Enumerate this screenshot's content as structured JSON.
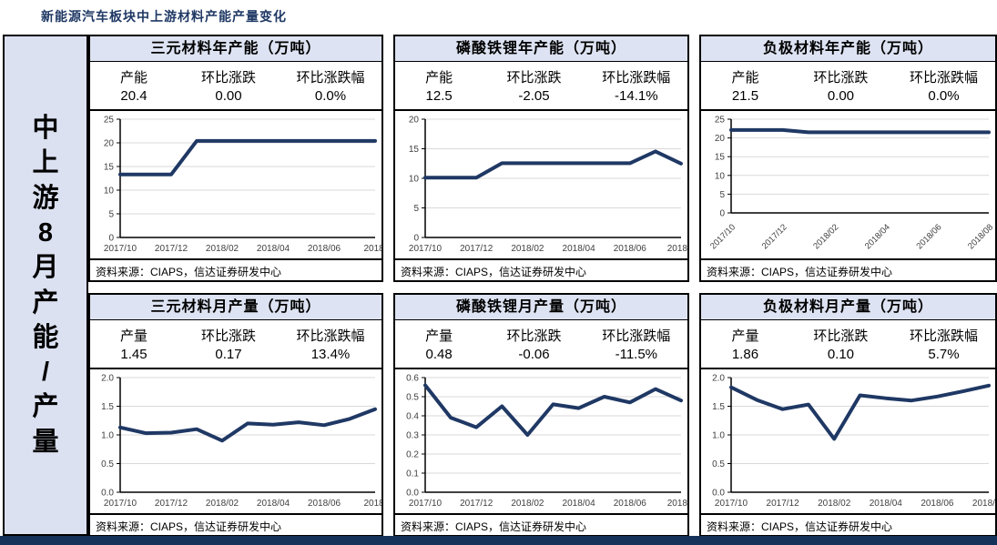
{
  "page": {
    "title": "新能源汽车板块中上游材料产能产量变化"
  },
  "sidebar": {
    "label": "中上游8月产能/产量"
  },
  "source_text": "资料来源：CIAPS，信达证券研发中心",
  "colors": {
    "accent_navy": "#1f3864",
    "header_bg": "#dde3f2",
    "sidebar_bg": "#dbe1f1",
    "gridline": "#d9d9d9",
    "bottom_bar": "#14325a"
  },
  "panels": [
    {
      "title": "三元材料年产能（万吨）",
      "stats": {
        "headers": [
          "产能",
          "环比涨跌",
          "环比涨跌幅"
        ],
        "values": [
          "20.4",
          "0.00",
          "0.0%"
        ]
      }
    },
    {
      "title": "磷酸铁锂年产能（万吨）",
      "stats": {
        "headers": [
          "产能",
          "环比涨跌",
          "环比涨跌幅"
        ],
        "values": [
          "12.5",
          "-2.05",
          "-14.1%"
        ]
      }
    },
    {
      "title": "负极材料年产能（万吨）",
      "stats": {
        "headers": [
          "产能",
          "环比涨跌",
          "环比涨跌幅"
        ],
        "values": [
          "21.5",
          "0.00",
          "0.0%"
        ]
      }
    },
    {
      "title": "三元材料月产量（万吨）",
      "stats": {
        "headers": [
          "产量",
          "环比涨跌",
          "环比涨跌幅"
        ],
        "values": [
          "1.45",
          "0.17",
          "13.4%"
        ]
      }
    },
    {
      "title": "磷酸铁锂月产量（万吨）",
      "stats": {
        "headers": [
          "产量",
          "环比涨跌",
          "环比涨跌幅"
        ],
        "values": [
          "0.48",
          "-0.06",
          "-11.5%"
        ]
      }
    },
    {
      "title": "负极材料月产量（万吨）",
      "stats": {
        "headers": [
          "产量",
          "环比涨跌",
          "环比涨跌幅"
        ],
        "values": [
          "1.86",
          "0.10",
          "5.7%"
        ]
      }
    }
  ],
  "chart_data": [
    {
      "type": "line",
      "title": "三元材料年产能（万吨）",
      "x": [
        "2017/10",
        "2017/11",
        "2017/12",
        "2018/01",
        "2018/02",
        "2018/03",
        "2018/04",
        "2018/05",
        "2018/06",
        "2018/07",
        "2018/08"
      ],
      "values": [
        13.3,
        13.3,
        13.3,
        20.4,
        20.4,
        20.4,
        20.4,
        20.4,
        20.4,
        20.4,
        20.4
      ],
      "ylim": [
        0,
        25
      ],
      "ytick_labels": [
        "0",
        "5",
        "10",
        "15",
        "20",
        "25"
      ],
      "xtick_indices": [
        0,
        2,
        4,
        6,
        8,
        10
      ],
      "xtick_labels": [
        "2017/10",
        "2017/12",
        "2018/02",
        "2018/04",
        "2018/06",
        "2018/"
      ],
      "rotated_xticks": false,
      "grid": true,
      "legend": "none",
      "line_color": "#1f3864",
      "xlabel": "",
      "ylabel": ""
    },
    {
      "type": "line",
      "title": "磷酸铁锂年产能（万吨）",
      "x": [
        "2017/10",
        "2017/11",
        "2017/12",
        "2018/01",
        "2018/02",
        "2018/03",
        "2018/04",
        "2018/05",
        "2018/06",
        "2018/07",
        "2018/08"
      ],
      "values": [
        10.1,
        10.1,
        10.1,
        12.55,
        12.55,
        12.55,
        12.55,
        12.55,
        12.55,
        14.55,
        12.5
      ],
      "ylim": [
        0,
        20
      ],
      "ytick_labels": [
        "0",
        "5",
        "10",
        "15",
        "20"
      ],
      "xtick_indices": [
        0,
        2,
        4,
        6,
        8,
        10
      ],
      "xtick_labels": [
        "2017/10",
        "2017/12",
        "2018/02",
        "2018/04",
        "2018/06",
        "2018/0"
      ],
      "rotated_xticks": false,
      "grid": true,
      "legend": "none",
      "line_color": "#1f3864",
      "xlabel": "",
      "ylabel": ""
    },
    {
      "type": "line",
      "title": "负极材料年产能（万吨）",
      "x": [
        "2017/10",
        "2017/11",
        "2017/12",
        "2018/01",
        "2018/02",
        "2018/03",
        "2018/04",
        "2018/05",
        "2018/06",
        "2018/07",
        "2018/08"
      ],
      "values": [
        22.1,
        22.1,
        22.1,
        21.5,
        21.5,
        21.5,
        21.5,
        21.5,
        21.5,
        21.5,
        21.5
      ],
      "ylim": [
        0,
        25
      ],
      "ytick_labels": [
        "0",
        "5",
        "10",
        "15",
        "20",
        "25"
      ],
      "xtick_indices": [
        0,
        2,
        4,
        6,
        8,
        10
      ],
      "xtick_labels": [
        "2017/10",
        "2017/12",
        "2018/02",
        "2018/04",
        "2018/06",
        "2018/08"
      ],
      "rotated_xticks": true,
      "grid": true,
      "legend": "none",
      "line_color": "#1f3864",
      "xlabel": "",
      "ylabel": ""
    },
    {
      "type": "line",
      "title": "三元材料月产量（万吨）",
      "x": [
        "2017/10",
        "2017/11",
        "2017/12",
        "2018/01",
        "2018/02",
        "2018/03",
        "2018/04",
        "2018/05",
        "2018/06",
        "2018/07",
        "2018/08"
      ],
      "values": [
        1.13,
        1.03,
        1.04,
        1.1,
        0.9,
        1.2,
        1.18,
        1.22,
        1.17,
        1.28,
        1.45
      ],
      "ylim": [
        0.0,
        2.0
      ],
      "ytick_labels": [
        "0.0",
        "0.5",
        "1.0",
        "1.5",
        "2.0"
      ],
      "xtick_indices": [
        0,
        2,
        4,
        6,
        8,
        10
      ],
      "xtick_labels": [
        "2017/10",
        "2017/12",
        "2018/02",
        "2018/04",
        "2018/06",
        "2018/"
      ],
      "rotated_xticks": false,
      "grid": true,
      "legend": "none",
      "line_color": "#1f3864",
      "xlabel": "",
      "ylabel": ""
    },
    {
      "type": "line",
      "title": "磷酸铁锂月产量（万吨）",
      "x": [
        "2017/10",
        "2017/11",
        "2017/12",
        "2018/01",
        "2018/02",
        "2018/03",
        "2018/04",
        "2018/05",
        "2018/06",
        "2018/07",
        "2018/08"
      ],
      "values": [
        0.56,
        0.39,
        0.34,
        0.45,
        0.3,
        0.46,
        0.44,
        0.5,
        0.47,
        0.54,
        0.48
      ],
      "ylim": [
        0.0,
        0.6
      ],
      "ytick_labels": [
        "0.0",
        "0.1",
        "0.2",
        "0.3",
        "0.4",
        "0.5",
        "0.6"
      ],
      "xtick_indices": [
        0,
        2,
        4,
        6,
        8,
        10
      ],
      "xtick_labels": [
        "2017/10",
        "2017/12",
        "2018/02",
        "2018/04",
        "2018/06",
        "2018/0"
      ],
      "rotated_xticks": false,
      "grid": true,
      "legend": "none",
      "line_color": "#1f3864",
      "xlabel": "",
      "ylabel": ""
    },
    {
      "type": "line",
      "title": "负极材料月产量（万吨）",
      "x": [
        "2017/10",
        "2017/11",
        "2017/12",
        "2018/01",
        "2018/02",
        "2018/03",
        "2018/04",
        "2018/05",
        "2018/06",
        "2018/07",
        "2018/08"
      ],
      "values": [
        1.83,
        1.61,
        1.45,
        1.53,
        0.93,
        1.69,
        1.64,
        1.6,
        1.67,
        1.76,
        1.86
      ],
      "ylim": [
        0.0,
        2.0
      ],
      "ytick_labels": [
        "0.0",
        "0.5",
        "1.0",
        "1.5",
        "2.0"
      ],
      "xtick_indices": [
        0,
        2,
        4,
        6,
        8,
        10
      ],
      "xtick_labels": [
        "2017/10",
        "2017/12",
        "2018/02",
        "2018/04",
        "2018/06",
        "2018/08"
      ],
      "rotated_xticks": false,
      "grid": true,
      "legend": "none",
      "line_color": "#1f3864",
      "xlabel": "",
      "ylabel": ""
    }
  ]
}
